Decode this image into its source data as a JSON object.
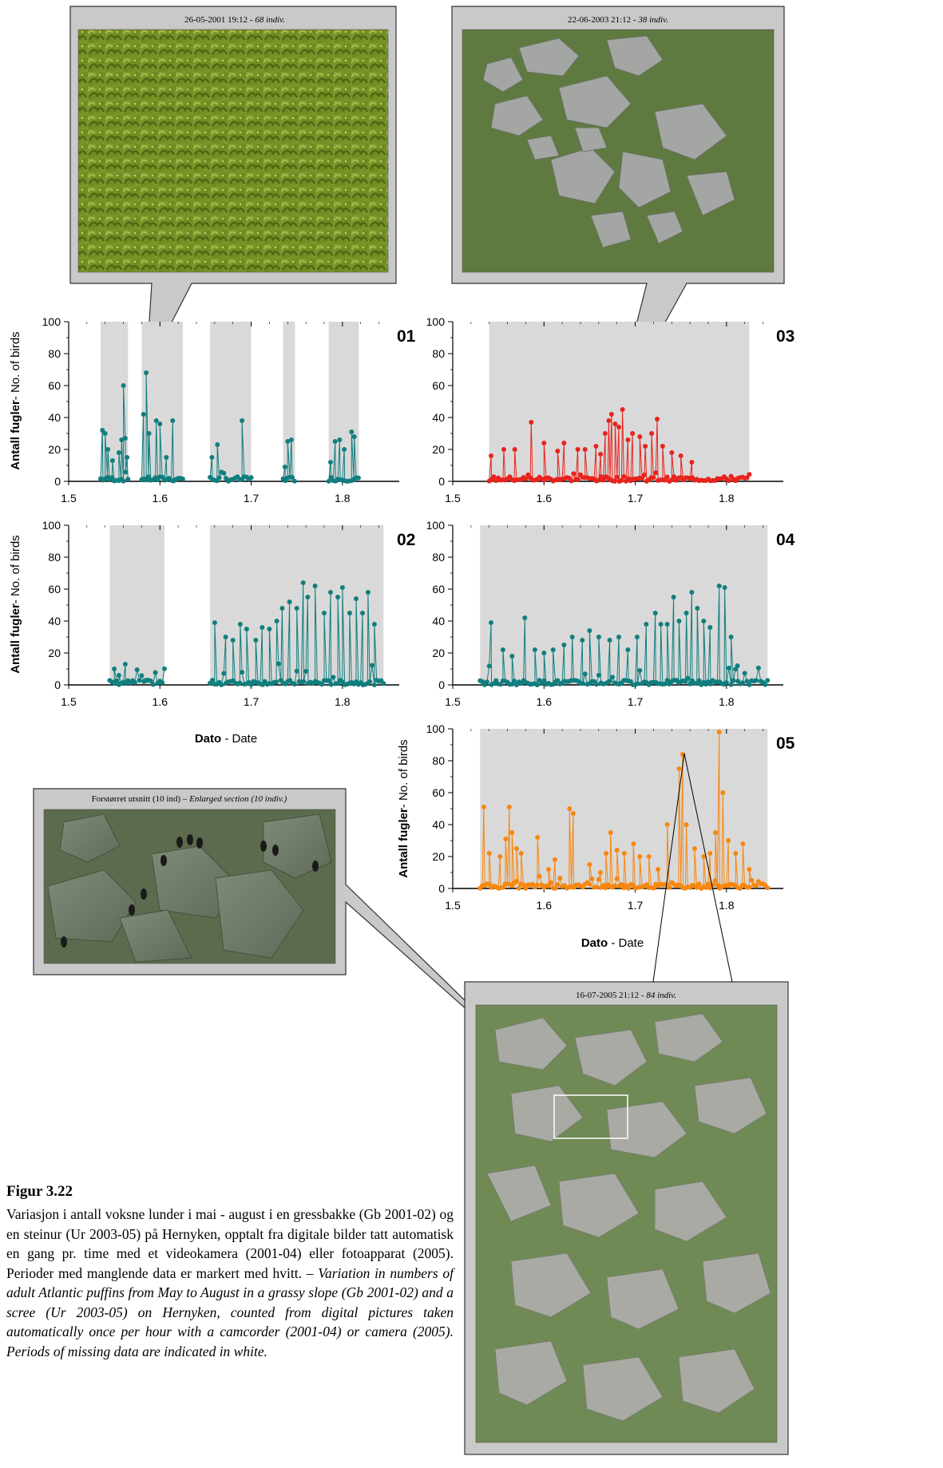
{
  "ylabel_bold": "Antall fugler",
  "ylabel_rest": "- No. of birds",
  "xlabel_bold": "Dato",
  "xlabel_rest": " - Date",
  "photos": {
    "p01": {
      "date": "26-05-2001 19:12",
      "count": "68 indiv."
    },
    "p03": {
      "date": "22-06-2003 21:12",
      "count": "38 indiv."
    },
    "p05": {
      "date": "16-07-2005 21:12",
      "count": "84 indiv."
    },
    "zoom": {
      "label": "Forstørret utsnitt (10 ind)",
      "label_en": "Enlarged section (10 indiv.)"
    }
  },
  "caption": {
    "title": "Figur 3.22",
    "text_no": "Variasjon i antall voksne lunder i mai - august i en gressbakke (Gb 2001-02) og en steinur (Ur 2003-05) på Hernyken, opptalt fra digitale bilder tatt automatisk en gang pr. time med et videokamera (2001-04) eller fotoapparat (2005). Perioder med manglende data er markert med hvitt. –",
    "text_en": "Variation in numbers of adult Atlantic puffins from May to August in a grassy slope (Gb 2001-02) and a scree (Ur 2003-05) on Hernyken, counted from digital pictures taken automatically once per hour with a camcorder (2001-04) or camera (2005). Periods of missing data are indicated in white."
  },
  "colors": {
    "teal": "#117e7e",
    "red": "#e8231c",
    "orange": "#f7870f",
    "shade": "#d9d9d9"
  },
  "chart_data": [
    {
      "id": "01",
      "type": "line",
      "marker": "circle",
      "color": "#117e7e",
      "xlim": [
        1.5,
        1.85
      ],
      "ylim": [
        0,
        100
      ],
      "xticks": [
        1.5,
        1.6,
        1.7,
        1.8
      ],
      "yticks": [
        0,
        20,
        40,
        60,
        80,
        100
      ],
      "data_periods": [
        [
          1.535,
          1.565
        ],
        [
          1.58,
          1.625
        ],
        [
          1.655,
          1.7
        ],
        [
          1.735,
          1.748
        ],
        [
          1.785,
          1.818
        ]
      ],
      "peaks": [
        [
          1.537,
          32
        ],
        [
          1.54,
          30
        ],
        [
          1.543,
          20
        ],
        [
          1.548,
          13
        ],
        [
          1.555,
          18
        ],
        [
          1.558,
          26
        ],
        [
          1.56,
          60
        ],
        [
          1.562,
          27
        ],
        [
          1.564,
          15
        ],
        [
          1.582,
          42
        ],
        [
          1.585,
          68
        ],
        [
          1.588,
          30
        ],
        [
          1.596,
          38
        ],
        [
          1.6,
          36
        ],
        [
          1.607,
          15
        ],
        [
          1.614,
          38
        ],
        [
          1.657,
          15
        ],
        [
          1.663,
          23
        ],
        [
          1.69,
          38
        ],
        [
          1.737,
          9
        ],
        [
          1.74,
          25
        ],
        [
          1.744,
          26
        ],
        [
          1.787,
          12
        ],
        [
          1.792,
          25
        ],
        [
          1.797,
          26
        ],
        [
          1.802,
          20
        ],
        [
          1.81,
          31
        ],
        [
          1.813,
          28
        ]
      ],
      "bulk_max": 6
    },
    {
      "id": "02",
      "type": "line",
      "marker": "circle",
      "color": "#117e7e",
      "xlim": [
        1.5,
        1.85
      ],
      "ylim": [
        0,
        100
      ],
      "xticks": [
        1.5,
        1.6,
        1.7,
        1.8
      ],
      "yticks": [
        0,
        20,
        40,
        60,
        80,
        100
      ],
      "data_periods": [
        [
          1.545,
          1.605
        ],
        [
          1.655,
          1.845
        ]
      ],
      "peaks": [
        [
          1.55,
          10
        ],
        [
          1.555,
          6
        ],
        [
          1.562,
          13
        ],
        [
          1.585,
          3
        ],
        [
          1.66,
          39
        ],
        [
          1.672,
          30
        ],
        [
          1.68,
          28
        ],
        [
          1.688,
          38
        ],
        [
          1.695,
          35
        ],
        [
          1.705,
          28
        ],
        [
          1.712,
          36
        ],
        [
          1.72,
          35
        ],
        [
          1.728,
          40
        ],
        [
          1.734,
          48
        ],
        [
          1.742,
          52
        ],
        [
          1.75,
          48
        ],
        [
          1.757,
          64
        ],
        [
          1.762,
          55
        ],
        [
          1.77,
          62
        ],
        [
          1.78,
          45
        ],
        [
          1.787,
          58
        ],
        [
          1.795,
          55
        ],
        [
          1.8,
          61
        ],
        [
          1.808,
          45
        ],
        [
          1.815,
          54
        ],
        [
          1.822,
          45
        ],
        [
          1.828,
          58
        ],
        [
          1.835,
          38
        ]
      ],
      "bulk_max": 14
    },
    {
      "id": "03",
      "type": "line",
      "marker": "circle",
      "color": "#e8231c",
      "xlim": [
        1.5,
        1.85
      ],
      "ylim": [
        0,
        100
      ],
      "xticks": [
        1.5,
        1.6,
        1.7,
        1.8
      ],
      "yticks": [
        0,
        20,
        40,
        60,
        80,
        100
      ],
      "data_periods": [
        [
          1.54,
          1.825
        ]
      ],
      "peaks": [
        [
          1.542,
          16
        ],
        [
          1.556,
          20
        ],
        [
          1.568,
          20
        ],
        [
          1.586,
          37
        ],
        [
          1.6,
          24
        ],
        [
          1.615,
          19
        ],
        [
          1.622,
          24
        ],
        [
          1.637,
          20
        ],
        [
          1.645,
          20
        ],
        [
          1.657,
          22
        ],
        [
          1.662,
          17
        ],
        [
          1.667,
          30
        ],
        [
          1.671,
          38
        ],
        [
          1.674,
          42
        ],
        [
          1.678,
          36
        ],
        [
          1.682,
          34
        ],
        [
          1.686,
          45
        ],
        [
          1.692,
          26
        ],
        [
          1.697,
          30
        ],
        [
          1.705,
          28
        ],
        [
          1.711,
          22
        ],
        [
          1.718,
          30
        ],
        [
          1.724,
          39
        ],
        [
          1.73,
          22
        ],
        [
          1.74,
          18
        ],
        [
          1.75,
          16
        ],
        [
          1.762,
          12
        ]
      ],
      "bulk_max": 6
    },
    {
      "id": "04",
      "type": "line",
      "marker": "circle",
      "color": "#117e7e",
      "xlim": [
        1.5,
        1.85
      ],
      "ylim": [
        0,
        100
      ],
      "xticks": [
        1.5,
        1.6,
        1.7,
        1.8
      ],
      "yticks": [
        0,
        20,
        40,
        60,
        80,
        100
      ],
      "data_periods": [
        [
          1.53,
          1.845
        ]
      ],
      "peaks": [
        [
          1.542,
          39
        ],
        [
          1.555,
          22
        ],
        [
          1.565,
          18
        ],
        [
          1.579,
          42
        ],
        [
          1.59,
          22
        ],
        [
          1.6,
          20
        ],
        [
          1.61,
          22
        ],
        [
          1.622,
          25
        ],
        [
          1.631,
          30
        ],
        [
          1.642,
          28
        ],
        [
          1.65,
          34
        ],
        [
          1.66,
          30
        ],
        [
          1.672,
          28
        ],
        [
          1.682,
          30
        ],
        [
          1.692,
          22
        ],
        [
          1.702,
          30
        ],
        [
          1.712,
          38
        ],
        [
          1.722,
          45
        ],
        [
          1.728,
          38
        ],
        [
          1.735,
          38
        ],
        [
          1.742,
          55
        ],
        [
          1.748,
          40
        ],
        [
          1.756,
          45
        ],
        [
          1.762,
          58
        ],
        [
          1.768,
          48
        ],
        [
          1.775,
          40
        ],
        [
          1.782,
          36
        ],
        [
          1.792,
          62
        ],
        [
          1.798,
          61
        ],
        [
          1.805,
          30
        ],
        [
          1.812,
          12
        ]
      ],
      "bulk_max": 12
    },
    {
      "id": "05",
      "type": "line",
      "marker": "circle",
      "color": "#f7870f",
      "xlim": [
        1.5,
        1.85
      ],
      "ylim": [
        0,
        100
      ],
      "xticks": [
        1.5,
        1.6,
        1.7,
        1.8
      ],
      "yticks": [
        0,
        20,
        40,
        60,
        80,
        100
      ],
      "data_periods": [
        [
          1.53,
          1.845
        ]
      ],
      "peaks": [
        [
          1.534,
          51
        ],
        [
          1.54,
          22
        ],
        [
          1.552,
          20
        ],
        [
          1.558,
          31
        ],
        [
          1.562,
          51
        ],
        [
          1.565,
          35
        ],
        [
          1.57,
          25
        ],
        [
          1.575,
          22
        ],
        [
          1.593,
          32
        ],
        [
          1.605,
          12
        ],
        [
          1.612,
          18
        ],
        [
          1.628,
          50
        ],
        [
          1.632,
          47
        ],
        [
          1.65,
          15
        ],
        [
          1.662,
          10
        ],
        [
          1.668,
          22
        ],
        [
          1.673,
          35
        ],
        [
          1.68,
          24
        ],
        [
          1.688,
          22
        ],
        [
          1.698,
          28
        ],
        [
          1.705,
          20
        ],
        [
          1.715,
          20
        ],
        [
          1.725,
          12
        ],
        [
          1.735,
          40
        ],
        [
          1.748,
          75
        ],
        [
          1.752,
          84
        ],
        [
          1.756,
          40
        ],
        [
          1.765,
          25
        ],
        [
          1.775,
          20
        ],
        [
          1.782,
          22
        ],
        [
          1.788,
          35
        ],
        [
          1.792,
          98
        ],
        [
          1.796,
          60
        ],
        [
          1.802,
          30
        ],
        [
          1.81,
          22
        ],
        [
          1.818,
          28
        ],
        [
          1.825,
          12
        ]
      ],
      "bulk_max": 8
    }
  ]
}
